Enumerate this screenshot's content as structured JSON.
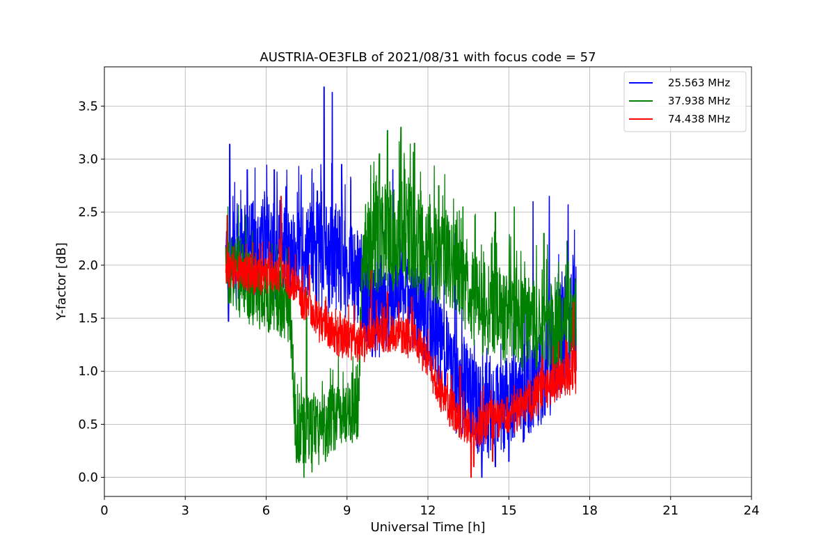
{
  "chart_data": {
    "type": "line",
    "title": "AUSTRIA-OE3FLB of 2021/08/31 with focus code = 57",
    "xlabel": "Universal Time [h]",
    "ylabel": "Y-factor [dB]",
    "xlim": [
      0,
      24
    ],
    "ylim": [
      -0.18,
      3.87
    ],
    "xticks": [
      0,
      3,
      6,
      9,
      12,
      15,
      18,
      21,
      24
    ],
    "xtick_labels": [
      "0",
      "3",
      "6",
      "9",
      "12",
      "15",
      "18",
      "21",
      "24"
    ],
    "yticks": [
      0.0,
      0.5,
      1.0,
      1.5,
      2.0,
      2.5,
      3.0,
      3.5
    ],
    "ytick_labels": [
      "0.0",
      "0.5",
      "1.0",
      "1.5",
      "2.0",
      "2.5",
      "3.0",
      "3.5"
    ],
    "grid": true,
    "legend_position": "top-right",
    "series": [
      {
        "name": "25.563 MHz",
        "color": "#0000ff",
        "x": [
          4.5,
          5.0,
          5.5,
          6.0,
          6.5,
          7.0,
          7.5,
          8.0,
          8.5,
          9.0,
          9.5,
          10.0,
          10.5,
          11.0,
          11.5,
          12.0,
          12.5,
          13.0,
          13.5,
          14.0,
          14.5,
          15.0,
          15.5,
          16.0,
          16.5,
          17.0,
          17.5
        ],
        "center": [
          2.05,
          2.1,
          2.15,
          2.1,
          2.15,
          2.15,
          2.15,
          2.1,
          2.05,
          2.0,
          1.85,
          1.55,
          1.6,
          1.75,
          1.65,
          1.5,
          1.25,
          0.9,
          0.8,
          0.65,
          0.65,
          0.7,
          0.75,
          0.9,
          1.1,
          1.35,
          1.55
        ],
        "spread": [
          0.45,
          0.5,
          0.5,
          0.55,
          0.5,
          0.4,
          0.5,
          0.6,
          0.55,
          0.5,
          0.5,
          0.45,
          0.45,
          0.4,
          0.45,
          0.45,
          0.45,
          0.5,
          0.5,
          0.5,
          0.45,
          0.45,
          0.5,
          0.5,
          0.55,
          0.55,
          0.55
        ],
        "peaks": [
          [
            4.65,
            3.14
          ],
          [
            5.3,
            2.9
          ],
          [
            6.3,
            2.9
          ],
          [
            7.3,
            2.85
          ],
          [
            7.9,
            2.7
          ],
          [
            8.15,
            3.68
          ],
          [
            8.45,
            3.63
          ],
          [
            8.8,
            2.95
          ],
          [
            10.7,
            2.9
          ],
          [
            13.0,
            2.3
          ],
          [
            15.9,
            2.6
          ],
          [
            16.5,
            2.65
          ],
          [
            17.2,
            2.57
          ]
        ],
        "dips": [
          [
            4.6,
            1.47
          ],
          [
            13.6,
            0.05
          ],
          [
            14.0,
            0.0
          ],
          [
            14.5,
            0.1
          ],
          [
            15.0,
            0.15
          ]
        ]
      },
      {
        "name": "37.938 MHz",
        "color": "#008000",
        "x": [
          4.5,
          5.0,
          5.5,
          6.0,
          6.5,
          6.9,
          7.1,
          7.5,
          8.0,
          8.5,
          9.0,
          9.4,
          9.6,
          10.0,
          10.5,
          11.0,
          11.5,
          12.0,
          12.5,
          13.0,
          13.5,
          14.0,
          14.5,
          15.0,
          15.5,
          16.0,
          16.5,
          17.0,
          17.5
        ],
        "center": [
          2.0,
          1.9,
          1.75,
          1.7,
          1.65,
          1.55,
          0.45,
          0.45,
          0.45,
          0.55,
          0.6,
          0.65,
          2.15,
          2.2,
          2.3,
          2.3,
          2.25,
          2.15,
          2.05,
          2.0,
          1.75,
          1.6,
          1.55,
          1.5,
          1.45,
          1.4,
          1.45,
          1.45,
          1.5
        ],
        "spread": [
          0.4,
          0.4,
          0.35,
          0.35,
          0.35,
          0.35,
          0.35,
          0.35,
          0.35,
          0.35,
          0.3,
          0.3,
          0.45,
          0.5,
          0.55,
          0.55,
          0.55,
          0.5,
          0.5,
          0.45,
          0.45,
          0.45,
          0.45,
          0.45,
          0.45,
          0.45,
          0.45,
          0.45,
          0.45
        ],
        "peaks": [
          [
            7.2,
            1.5
          ],
          [
            7.5,
            1.75
          ],
          [
            10.2,
            3.05
          ],
          [
            10.5,
            3.27
          ],
          [
            11.0,
            3.3
          ],
          [
            11.5,
            3.15
          ],
          [
            12.4,
            2.75
          ],
          [
            13.3,
            2.55
          ],
          [
            14.5,
            2.5
          ],
          [
            15.2,
            2.55
          ],
          [
            16.3,
            2.3
          ]
        ],
        "dips": [
          [
            7.2,
            0.15
          ],
          [
            7.4,
            0.0
          ],
          [
            7.7,
            0.05
          ],
          [
            8.2,
            0.15
          ]
        ]
      },
      {
        "name": "74.438 MHz",
        "color": "#ff0000",
        "x": [
          4.5,
          5.0,
          5.5,
          6.0,
          6.5,
          7.0,
          7.5,
          8.0,
          8.5,
          9.0,
          9.5,
          10.0,
          10.5,
          11.0,
          11.5,
          12.0,
          12.5,
          13.0,
          13.5,
          14.0,
          14.5,
          15.0,
          15.5,
          16.0,
          16.5,
          17.0,
          17.5
        ],
        "center": [
          1.95,
          1.95,
          1.9,
          1.9,
          1.9,
          1.85,
          1.6,
          1.45,
          1.35,
          1.3,
          1.25,
          1.35,
          1.35,
          1.35,
          1.3,
          1.1,
          0.8,
          0.6,
          0.45,
          0.5,
          0.55,
          0.6,
          0.65,
          0.75,
          0.85,
          0.95,
          1.0
        ],
        "spread": [
          0.2,
          0.18,
          0.18,
          0.18,
          0.2,
          0.2,
          0.2,
          0.2,
          0.2,
          0.2,
          0.2,
          0.18,
          0.18,
          0.2,
          0.2,
          0.2,
          0.2,
          0.2,
          0.2,
          0.2,
          0.2,
          0.2,
          0.2,
          0.2,
          0.2,
          0.2,
          0.22
        ],
        "peaks": [
          [
            4.55,
            2.47
          ],
          [
            6.55,
            2.65
          ],
          [
            7.6,
            2.0
          ],
          [
            9.9,
            1.95
          ],
          [
            10.5,
            1.75
          ],
          [
            11.4,
            1.7
          ],
          [
            13.2,
            1.05
          ],
          [
            17.4,
            1.65
          ]
        ],
        "dips": [
          [
            13.6,
            0.0
          ],
          [
            13.7,
            0.1
          ],
          [
            14.4,
            0.15
          ]
        ]
      }
    ]
  }
}
